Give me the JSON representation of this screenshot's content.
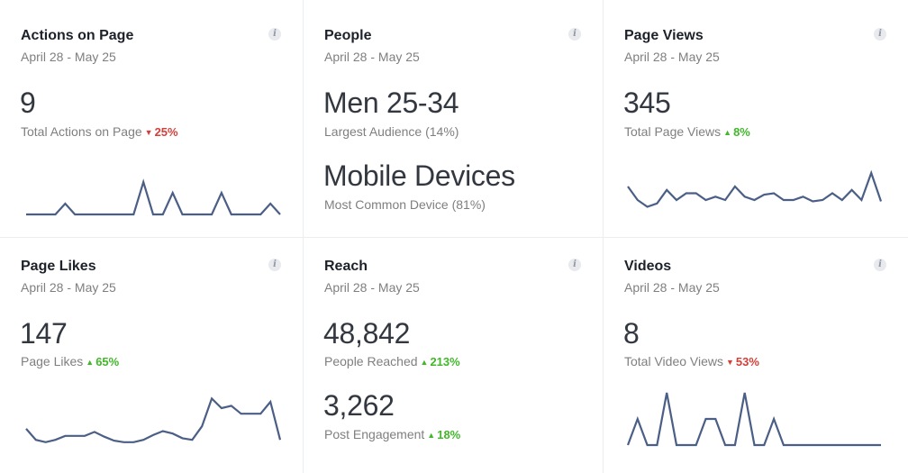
{
  "cards": [
    {
      "title": "Actions on Page",
      "date_range": "April 28 - May 25",
      "info_icon": "info-icon",
      "metrics": [
        {
          "value": "9",
          "label": "Total Actions on Page",
          "change": "25%",
          "direction": "down"
        }
      ]
    },
    {
      "title": "People",
      "date_range": "April 28 - May 25",
      "info_icon": "info-icon",
      "metrics": [
        {
          "value": "Men 25-34",
          "label": "Largest Audience (14%)"
        },
        {
          "value": "Mobile Devices",
          "label": "Most Common Device (81%)"
        }
      ]
    },
    {
      "title": "Page Views",
      "date_range": "April 28 - May 25",
      "info_icon": "info-icon",
      "metrics": [
        {
          "value": "345",
          "label": "Total Page Views",
          "change": "8%",
          "direction": "up"
        }
      ]
    },
    {
      "title": "Page Likes",
      "date_range": "April 28 - May 25",
      "info_icon": "info-icon",
      "metrics": [
        {
          "value": "147",
          "label": "Page Likes",
          "change": "65%",
          "direction": "up"
        }
      ]
    },
    {
      "title": "Reach",
      "date_range": "April 28 - May 25",
      "info_icon": "info-icon",
      "metrics": [
        {
          "value": "48,842",
          "label": "People Reached",
          "change": "213%",
          "direction": "up"
        },
        {
          "value": "3,262",
          "label": "Post Engagement",
          "change": "18%",
          "direction": "up"
        }
      ]
    },
    {
      "title": "Videos",
      "date_range": "April 28 - May 25",
      "info_icon": "info-icon",
      "metrics": [
        {
          "value": "8",
          "label": "Total Video Views",
          "change": "53%",
          "direction": "down"
        }
      ]
    }
  ],
  "arrows": {
    "up": "▲",
    "down": "▼"
  },
  "colors": {
    "up": "#42b72a",
    "down": "#d2403a",
    "sparkline": "#4b5f86"
  },
  "sparklines": {
    "actions_on_page": [
      0,
      0,
      0,
      0,
      1,
      0,
      0,
      0,
      0,
      0,
      0,
      0,
      3,
      0,
      0,
      2,
      0,
      0,
      0,
      0,
      2,
      0,
      0,
      0,
      0,
      1,
      0
    ],
    "page_views": [
      4,
      2,
      1,
      1.5,
      3.5,
      2,
      3,
      3,
      2,
      2.5,
      2,
      4,
      2.5,
      2,
      2.8,
      3,
      2,
      2,
      2.5,
      1.8,
      2,
      3,
      2,
      3.5,
      2,
      6,
      1.8
    ],
    "page_likes": [
      2.4,
      1.0,
      0.7,
      1.0,
      1.5,
      1.5,
      1.5,
      2.0,
      1.4,
      0.9,
      0.7,
      0.7,
      1.0,
      1.6,
      2.1,
      1.8,
      1.2,
      1.0,
      2.7,
      6.2,
      5.0,
      5.3,
      4.3,
      4.3,
      4.3,
      5.8,
      1.0
    ],
    "videos": [
      0,
      1,
      0,
      0,
      2,
      0,
      0,
      0,
      1,
      1,
      0,
      0,
      2,
      0,
      0,
      1,
      0,
      0,
      0,
      0,
      0,
      0,
      0,
      0,
      0,
      0,
      0
    ]
  }
}
